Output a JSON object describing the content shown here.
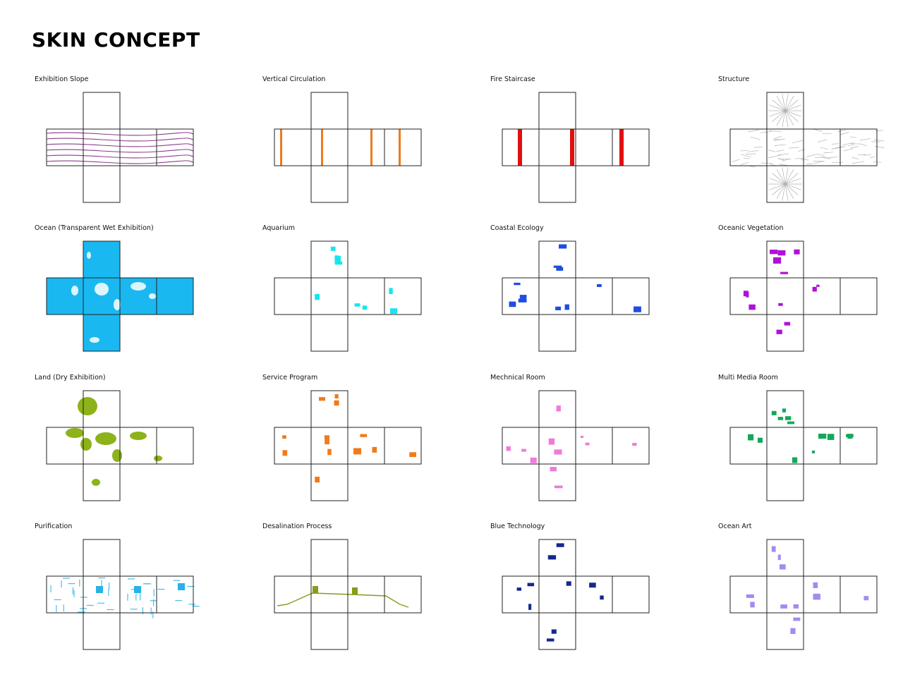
{
  "title": "SKIN CONCEPT",
  "panels": [
    {
      "label": "Exhibition Slope",
      "motif": "slope",
      "color": "#8a3f8a"
    },
    {
      "label": "Vertical Circulation",
      "motif": "vbars",
      "color": "#f07a1a"
    },
    {
      "label": "Fire Staircase",
      "motif": "vbars",
      "color": "#e01010"
    },
    {
      "label": "Structure",
      "motif": "structure",
      "color": "#b0b0b0"
    },
    {
      "label": "Ocean (Transparent Wet Exhibition)",
      "motif": "fill",
      "color": "#1ab8f0"
    },
    {
      "label": "Aquarium",
      "motif": "patches",
      "color": "#14e6ee"
    },
    {
      "label": "Coastal Ecology",
      "motif": "patches",
      "color": "#1f4de0"
    },
    {
      "label": "Oceanic Vegetation",
      "motif": "patches",
      "color": "#b010d8"
    },
    {
      "label": "Land (Dry Exhibition)",
      "motif": "land",
      "color": "#8db21a"
    },
    {
      "label": "Service Program",
      "motif": "patches",
      "color": "#f07a1a"
    },
    {
      "label": "Mechnical Room",
      "motif": "patches",
      "color": "#f07ad8"
    },
    {
      "label": "Multi Media Room",
      "motif": "patches",
      "color": "#13a85a"
    },
    {
      "label": "Purification",
      "motif": "pipes",
      "color": "#27b2e8"
    },
    {
      "label": "Desalination Process",
      "motif": "line",
      "color": "#8a9a1a"
    },
    {
      "label": "Blue Technology",
      "motif": "patches",
      "color": "#13298a"
    },
    {
      "label": "Ocean Art",
      "motif": "patches",
      "color": "#a48af0"
    }
  ]
}
